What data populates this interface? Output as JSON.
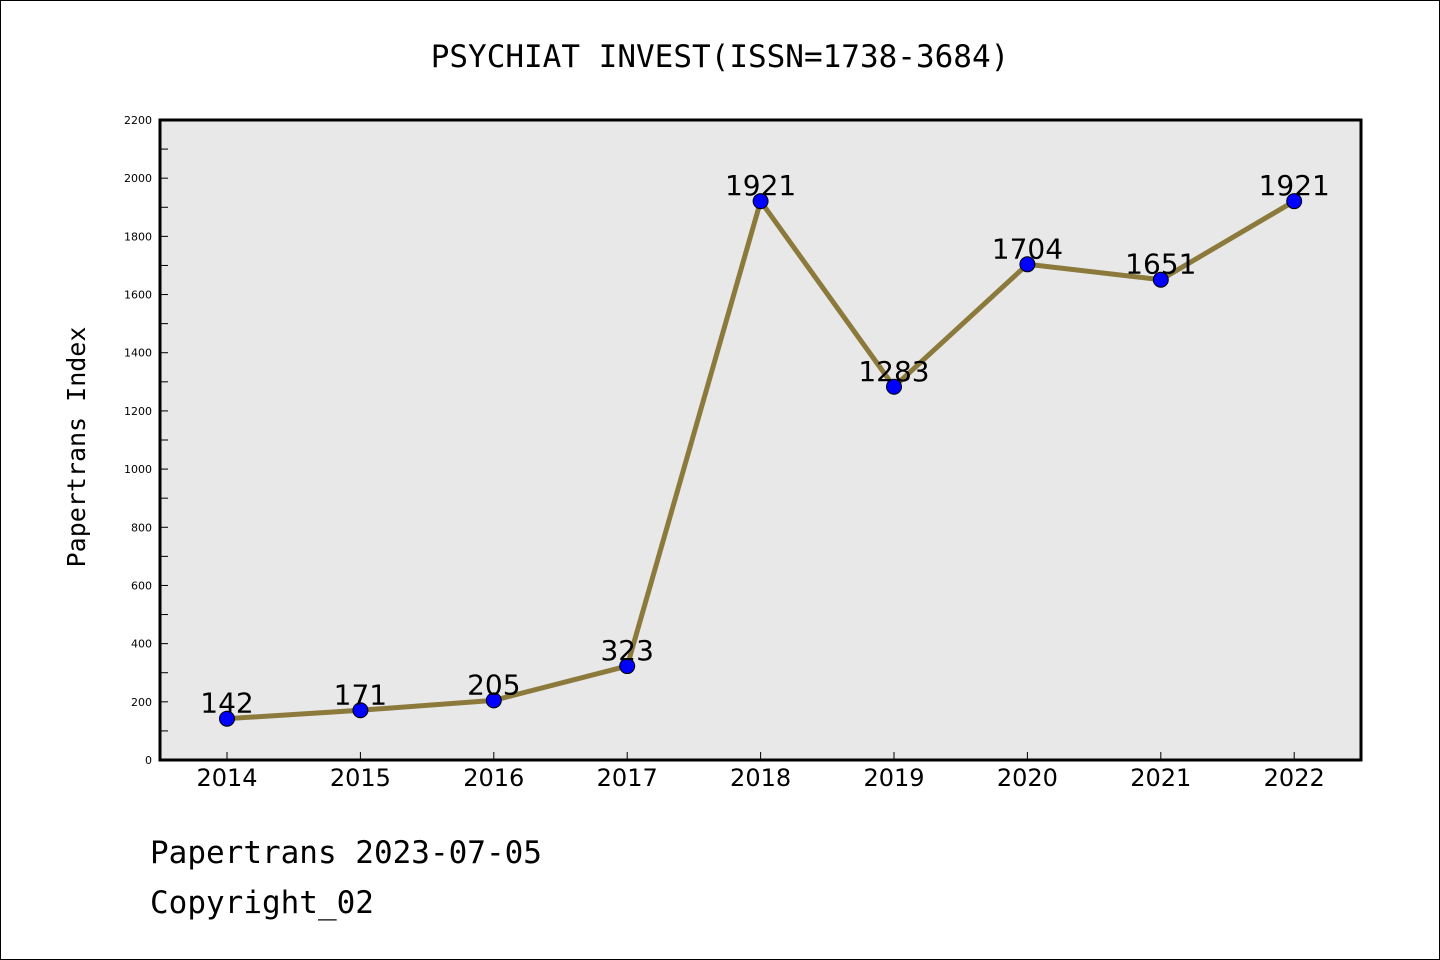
{
  "chart_data": {
    "type": "line",
    "title": "PSYCHIAT INVEST(ISSN=1738-3684)",
    "xlabel": "",
    "ylabel": "Papertrans Index",
    "x": [
      "2014",
      "2015",
      "2016",
      "2017",
      "2018",
      "2019",
      "2020",
      "2021",
      "2022"
    ],
    "series": [
      {
        "values": [
          142,
          171,
          205,
          323,
          1921,
          1283,
          1704,
          1651,
          1921
        ]
      }
    ],
    "data_labels": [
      "142",
      "171",
      "205",
      "323",
      "1921",
      "1283",
      "1704",
      "1651",
      "1921"
    ],
    "ylim": [
      0,
      2200
    ],
    "y_ticks": [
      0,
      200,
      400,
      600,
      800,
      1000,
      1200,
      1400,
      1600,
      1800,
      2000,
      2200
    ],
    "y_tick_labels": [
      "0",
      "200",
      "400",
      "600",
      "800",
      "1000",
      "1200",
      "1400",
      "1600",
      "1800",
      "2000",
      "2200"
    ],
    "grid": false,
    "legend": "none",
    "colors": {
      "line": "#8C7A3C",
      "marker": "#0000FF",
      "plot_background": "#E8E8E8"
    }
  },
  "footer": {
    "date_line": "Papertrans 2023-07-05",
    "copyright_line": "Copyright_02"
  }
}
